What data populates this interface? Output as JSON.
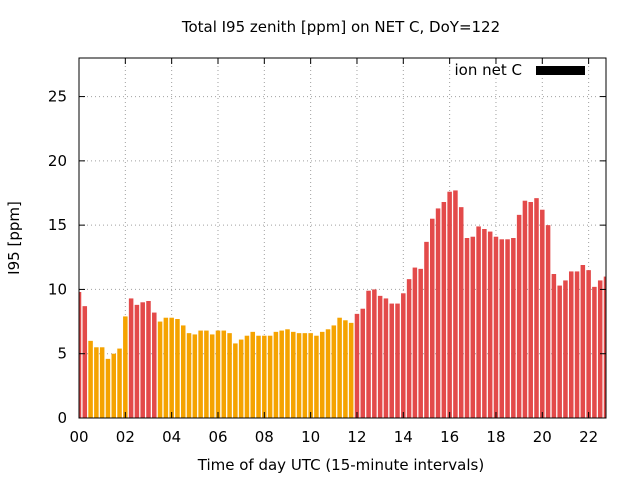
{
  "chart_data": {
    "type": "bar",
    "title": "Total I95 zenith [ppm] on NET C, DoY=122",
    "xlabel": "Time of day UTC (15-minute intervals)",
    "ylabel": "I95 [ppm]",
    "xlim": [
      0,
      22.75
    ],
    "ylim": [
      0,
      28
    ],
    "x_ticks": [
      "00",
      "02",
      "04",
      "06",
      "08",
      "10",
      "12",
      "14",
      "16",
      "18",
      "20",
      "22"
    ],
    "x_tick_values": [
      0,
      2,
      4,
      6,
      8,
      10,
      12,
      14,
      16,
      18,
      20,
      22
    ],
    "y_ticks": [
      0,
      5,
      10,
      15,
      20,
      25
    ],
    "grid": true,
    "legend": {
      "label": "ion net C",
      "position": "top-right",
      "color": "#000000"
    },
    "colors": {
      "high": "#e34a4a",
      "low": "#f5a300"
    },
    "bar_width_hours": 0.25,
    "x": [
      0,
      0.25,
      0.5,
      0.75,
      1,
      1.25,
      1.5,
      1.75,
      2,
      2.25,
      2.5,
      2.75,
      3,
      3.25,
      3.5,
      3.75,
      4,
      4.25,
      4.5,
      4.75,
      5,
      5.25,
      5.5,
      5.75,
      6,
      6.25,
      6.5,
      6.75,
      7,
      7.25,
      7.5,
      7.75,
      8,
      8.25,
      8.5,
      8.75,
      9,
      9.25,
      9.5,
      9.75,
      10,
      10.25,
      10.5,
      10.75,
      11,
      11.25,
      11.5,
      11.75,
      12,
      12.25,
      12.5,
      12.75,
      13,
      13.25,
      13.5,
      13.75,
      14,
      14.25,
      14.5,
      14.75,
      15,
      15.25,
      15.5,
      15.75,
      16,
      16.25,
      16.5,
      16.75,
      17,
      17.25,
      17.5,
      17.75,
      18,
      18.25,
      18.5,
      18.75,
      19,
      19.25,
      19.5,
      19.75,
      20,
      20.25,
      20.5,
      20.75,
      21,
      21.25,
      21.5,
      21.75,
      22,
      22.25,
      22.5,
      22.75
    ],
    "values": [
      9.8,
      8.7,
      6.0,
      5.5,
      5.5,
      4.6,
      5.0,
      5.4,
      7.9,
      9.3,
      8.8,
      9.0,
      9.1,
      8.2,
      7.5,
      7.8,
      7.8,
      7.7,
      7.2,
      6.6,
      6.5,
      6.8,
      6.8,
      6.5,
      6.8,
      6.8,
      6.6,
      5.8,
      6.1,
      6.4,
      6.7,
      6.4,
      6.4,
      6.4,
      6.7,
      6.8,
      6.9,
      6.7,
      6.6,
      6.6,
      6.6,
      6.4,
      6.7,
      6.9,
      7.2,
      7.8,
      7.6,
      7.4,
      8.1,
      8.5,
      9.9,
      10.0,
      9.5,
      9.3,
      8.9,
      8.9,
      9.7,
      10.8,
      11.7,
      11.6,
      13.7,
      15.5,
      16.3,
      16.8,
      17.6,
      17.7,
      16.4,
      14.0,
      14.1,
      14.9,
      14.7,
      14.5,
      14.1,
      13.9,
      13.9,
      14.0,
      15.8,
      16.9,
      16.8,
      17.1,
      16.2,
      15.0,
      11.2,
      10.3,
      10.7,
      11.4,
      11.4,
      11.9,
      11.5,
      10.2,
      10.7,
      11.0
    ],
    "categories": [
      "high",
      "high",
      "low",
      "low",
      "low",
      "low",
      "low",
      "low",
      "low",
      "high",
      "high",
      "high",
      "high",
      "high",
      "low",
      "low",
      "low",
      "low",
      "low",
      "low",
      "low",
      "low",
      "low",
      "low",
      "low",
      "low",
      "low",
      "low",
      "low",
      "low",
      "low",
      "low",
      "low",
      "low",
      "low",
      "low",
      "low",
      "low",
      "low",
      "low",
      "low",
      "low",
      "low",
      "low",
      "low",
      "low",
      "low",
      "low",
      "high",
      "high",
      "high",
      "high",
      "high",
      "high",
      "high",
      "high",
      "high",
      "high",
      "high",
      "high",
      "high",
      "high",
      "high",
      "high",
      "high",
      "high",
      "high",
      "high",
      "high",
      "high",
      "high",
      "high",
      "high",
      "high",
      "high",
      "high",
      "high",
      "high",
      "high",
      "high",
      "high",
      "high",
      "high",
      "high",
      "high",
      "high",
      "high",
      "high",
      "high",
      "high",
      "high",
      "high"
    ]
  }
}
